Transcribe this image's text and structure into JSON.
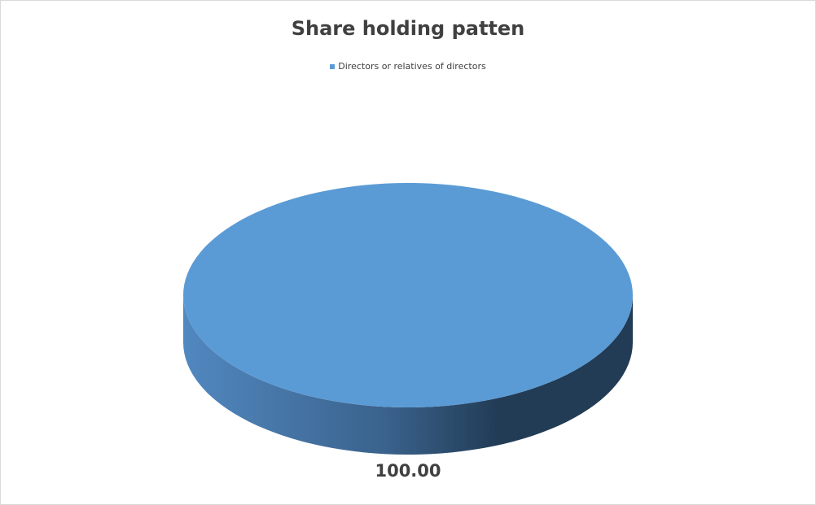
{
  "chart_data": {
    "type": "pie",
    "title": "Share holding patten",
    "categories": [
      "Directors or relatives of directors"
    ],
    "values": [
      100.0
    ],
    "data_labels": [
      "100.00"
    ],
    "legend_position": "top",
    "colors": [
      "#5b9bd5"
    ],
    "style": "3d"
  }
}
